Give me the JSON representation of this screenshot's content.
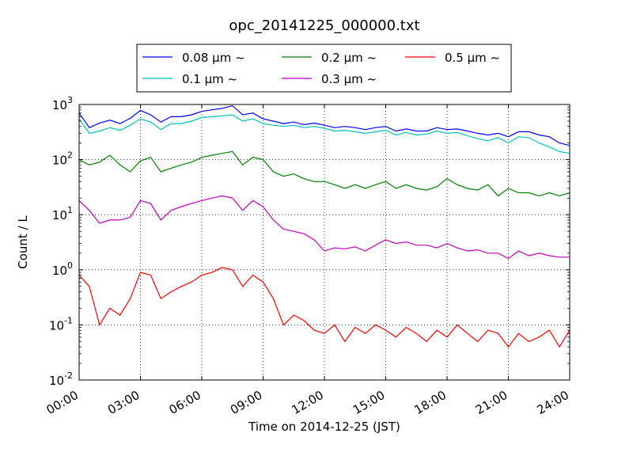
{
  "chart_data": {
    "type": "line",
    "title": "opc_20141225_000000.txt",
    "xlabel": "Time on 2014-12-25 (JST)",
    "ylabel": "Count / L",
    "yscale": "log",
    "xlim": [
      0,
      24
    ],
    "ylim": [
      0.01,
      1000
    ],
    "grid": true,
    "legend_position": "top, above plot, 3 columns",
    "x_ticks": [
      "00:00",
      "03:00",
      "06:00",
      "09:00",
      "12:00",
      "15:00",
      "18:00",
      "21:00",
      "24:00"
    ],
    "y_ticks": [
      {
        "base": "10",
        "exp": "-2"
      },
      {
        "base": "10",
        "exp": "-1"
      },
      {
        "base": "10",
        "exp": "0"
      },
      {
        "base": "10",
        "exp": "1"
      },
      {
        "base": "10",
        "exp": "2"
      },
      {
        "base": "10",
        "exp": "3"
      }
    ],
    "series": [
      {
        "name": "0.08 μm ~",
        "color": "#0000ff",
        "x": [
          0.0,
          0.5,
          1.0,
          1.5,
          2.0,
          2.5,
          3.0,
          3.5,
          4.0,
          4.5,
          5.0,
          5.5,
          6.0,
          6.5,
          7.0,
          7.5,
          8.0,
          8.5,
          9.0,
          9.5,
          10.0,
          10.5,
          11.0,
          11.5,
          12.0,
          12.5,
          13.0,
          13.5,
          14.0,
          14.5,
          15.0,
          15.5,
          16.0,
          16.5,
          17.0,
          17.5,
          18.0,
          18.5,
          19.0,
          19.5,
          20.0,
          20.5,
          21.0,
          21.5,
          22.0,
          22.5,
          23.0,
          23.5,
          24.0
        ],
        "y": [
          700,
          380,
          460,
          520,
          450,
          560,
          780,
          650,
          480,
          600,
          600,
          650,
          750,
          800,
          850,
          950,
          650,
          700,
          550,
          500,
          450,
          480,
          430,
          460,
          420,
          380,
          400,
          380,
          350,
          380,
          400,
          330,
          360,
          330,
          330,
          380,
          350,
          360,
          330,
          300,
          280,
          300,
          260,
          320,
          320,
          280,
          260,
          200,
          180
        ]
      },
      {
        "name": "0.1 μm ~",
        "color": "#00bfbf",
        "x": [
          0.0,
          0.5,
          1.0,
          1.5,
          2.0,
          2.5,
          3.0,
          3.5,
          4.0,
          4.5,
          5.0,
          5.5,
          6.0,
          6.5,
          7.0,
          7.5,
          8.0,
          8.5,
          9.0,
          9.5,
          10.0,
          10.5,
          11.0,
          11.5,
          12.0,
          12.5,
          13.0,
          13.5,
          14.0,
          14.5,
          15.0,
          15.5,
          16.0,
          16.5,
          17.0,
          17.5,
          18.0,
          18.5,
          19.0,
          19.5,
          20.0,
          20.5,
          21.0,
          21.5,
          22.0,
          22.5,
          23.0,
          23.5,
          24.0
        ],
        "y": [
          550,
          300,
          330,
          380,
          340,
          420,
          550,
          480,
          350,
          450,
          450,
          500,
          580,
          600,
          620,
          650,
          500,
          550,
          450,
          420,
          400,
          420,
          380,
          400,
          370,
          330,
          340,
          320,
          300,
          320,
          340,
          280,
          310,
          280,
          290,
          330,
          300,
          310,
          270,
          240,
          220,
          250,
          200,
          260,
          250,
          200,
          170,
          140,
          130
        ]
      },
      {
        "name": "0.2 μm ~",
        "color": "#008000",
        "x": [
          0.0,
          0.5,
          1.0,
          1.5,
          2.0,
          2.5,
          3.0,
          3.5,
          4.0,
          4.5,
          5.0,
          5.5,
          6.0,
          6.5,
          7.0,
          7.5,
          8.0,
          8.5,
          9.0,
          9.5,
          10.0,
          10.5,
          11.0,
          11.5,
          12.0,
          12.5,
          13.0,
          13.5,
          14.0,
          14.5,
          15.0,
          15.5,
          16.0,
          16.5,
          17.0,
          17.5,
          18.0,
          18.5,
          19.0,
          19.5,
          20.0,
          20.5,
          21.0,
          21.5,
          22.0,
          22.5,
          23.0,
          23.5,
          24.0
        ],
        "y": [
          100,
          80,
          90,
          120,
          80,
          60,
          95,
          110,
          60,
          70,
          80,
          90,
          110,
          120,
          130,
          140,
          80,
          110,
          100,
          60,
          50,
          55,
          45,
          40,
          40,
          35,
          30,
          35,
          30,
          35,
          40,
          30,
          35,
          30,
          28,
          32,
          45,
          35,
          30,
          28,
          35,
          22,
          30,
          25,
          25,
          22,
          25,
          22,
          25
        ]
      },
      {
        "name": "0.3 μm ~",
        "color": "#bf00bf",
        "x": [
          0.0,
          0.5,
          1.0,
          1.5,
          2.0,
          2.5,
          3.0,
          3.5,
          4.0,
          4.5,
          5.0,
          5.5,
          6.0,
          6.5,
          7.0,
          7.5,
          8.0,
          8.5,
          9.0,
          9.5,
          10.0,
          10.5,
          11.0,
          11.5,
          12.0,
          12.5,
          13.0,
          13.5,
          14.0,
          14.5,
          15.0,
          15.5,
          16.0,
          16.5,
          17.0,
          17.5,
          18.0,
          18.5,
          19.0,
          19.5,
          20.0,
          20.5,
          21.0,
          21.5,
          22.0,
          22.5,
          23.0,
          23.5,
          24.0
        ],
        "y": [
          18,
          12,
          7,
          8,
          8,
          9,
          18,
          16,
          8,
          12,
          14,
          16,
          18,
          20,
          22,
          20,
          12,
          18,
          14,
          8,
          5.5,
          5,
          4.5,
          3.5,
          2.2,
          2.5,
          2.4,
          2.6,
          2.2,
          2.8,
          3.5,
          3.0,
          3.2,
          2.8,
          2.8,
          2.5,
          3.0,
          2.5,
          2.2,
          2.3,
          2.0,
          2.0,
          1.6,
          2.2,
          1.8,
          2.0,
          1.8,
          1.7,
          1.7
        ]
      },
      {
        "name": "0.5 μm ~",
        "color": "#ff0000",
        "x": [
          0.0,
          0.5,
          1.0,
          1.5,
          2.0,
          2.5,
          3.0,
          3.5,
          4.0,
          4.5,
          5.0,
          5.5,
          6.0,
          6.5,
          7.0,
          7.5,
          8.0,
          8.5,
          9.0,
          9.5,
          10.0,
          10.5,
          11.0,
          11.5,
          12.0,
          12.5,
          13.0,
          13.5,
          14.0,
          14.5,
          15.0,
          15.5,
          16.0,
          16.5,
          17.0,
          17.5,
          18.0,
          18.5,
          19.0,
          19.5,
          20.0,
          20.5,
          21.0,
          21.5,
          22.0,
          22.5,
          23.0,
          23.5,
          24.0
        ],
        "y": [
          0.8,
          0.5,
          0.1,
          0.2,
          0.15,
          0.3,
          0.9,
          0.8,
          0.3,
          0.4,
          0.5,
          0.6,
          0.8,
          0.9,
          1.1,
          1.0,
          0.5,
          0.8,
          0.6,
          0.3,
          0.1,
          0.15,
          0.12,
          0.08,
          0.07,
          0.1,
          0.05,
          0.09,
          0.07,
          0.1,
          0.08,
          0.06,
          0.09,
          0.07,
          0.05,
          0.08,
          0.06,
          0.1,
          0.07,
          0.05,
          0.08,
          0.07,
          0.04,
          0.07,
          0.05,
          0.06,
          0.08,
          0.04,
          0.08
        ]
      }
    ]
  }
}
